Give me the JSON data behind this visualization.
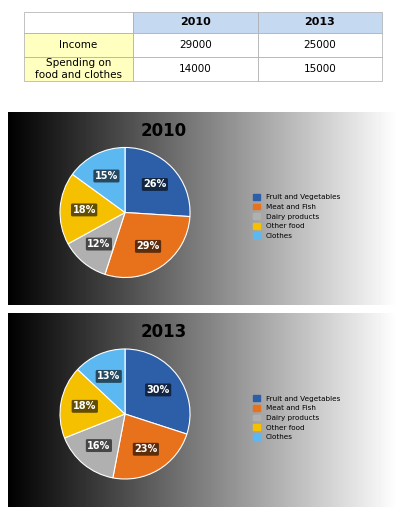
{
  "table": {
    "headers": [
      "",
      "2010",
      "2013"
    ],
    "rows": [
      [
        "Income",
        "29000",
        "25000"
      ],
      [
        "Spending on\nfood and clothes",
        "14000",
        "15000"
      ]
    ],
    "header_bg": "#c5d9f1",
    "row_bg": "#ffffc0",
    "header_fontsize": 8,
    "cell_fontsize": 8
  },
  "pie2010": {
    "title": "2010",
    "labels": [
      "Fruit and Vegetables",
      "Meat and Fish",
      "Dairy products",
      "Other food",
      "Clothes"
    ],
    "values": [
      26,
      29,
      12,
      18,
      15
    ],
    "colors": [
      "#2d5fa8",
      "#e8721c",
      "#b0b0b0",
      "#f5c000",
      "#5bb8f0"
    ],
    "pct_labels": [
      "26%",
      "29%",
      "12%",
      "18%",
      "15%"
    ],
    "startangle": 90
  },
  "pie2013": {
    "title": "2013",
    "labels": [
      "Fruit and Vegetables",
      "Meat and Fish",
      "Dairy products",
      "Other food",
      "Clothes"
    ],
    "values": [
      30,
      23,
      16,
      18,
      13
    ],
    "colors": [
      "#2d5fa8",
      "#e8721c",
      "#b0b0b0",
      "#f5c000",
      "#5bb8f0"
    ],
    "pct_labels": [
      "30%",
      "23%",
      "16%",
      "18%",
      "13%"
    ],
    "startangle": 90
  },
  "legend_labels": [
    "Fruit and Vegetables",
    "Meat and Fish",
    "Dairy products",
    "Other food",
    "Clothes"
  ],
  "legend_colors": [
    "#2d5fa8",
    "#e8721c",
    "#b0b0b0",
    "#f5c000",
    "#5bb8f0"
  ],
  "panel_gradient_left": "#b0b0b0",
  "panel_gradient_right": "#e8e8e8"
}
